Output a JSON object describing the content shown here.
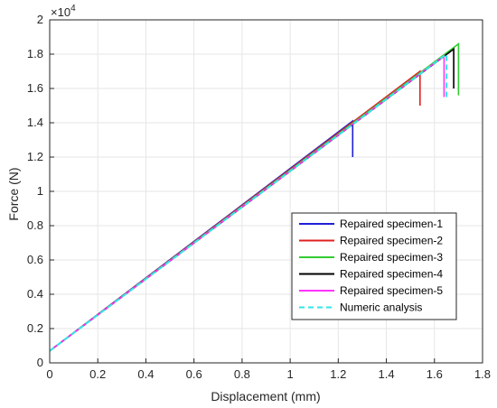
{
  "chart_data": {
    "type": "line",
    "xlabel": "Displacement (mm)",
    "ylabel": "Force (N)",
    "y_exponent_base": "×10",
    "y_exponent_power": "4",
    "xlim": [
      0,
      1.8
    ],
    "ylim": [
      0,
      2
    ],
    "xticks": [
      "0",
      "0.2",
      "0.4",
      "0.6",
      "0.8",
      "1",
      "1.2",
      "1.4",
      "1.6",
      "1.8"
    ],
    "yticks": [
      "0",
      "0.2",
      "0.4",
      "0.6",
      "0.8",
      "1",
      "1.2",
      "1.4",
      "1.6",
      "1.8",
      "2"
    ],
    "grid": true,
    "legend_position": "bottom-right",
    "series": [
      {
        "name": "Repaired specimen-1",
        "color": "#1f1fd6",
        "style": "solid",
        "x": [
          0,
          1.26,
          1.26
        ],
        "y": [
          0.07,
          1.41,
          1.2
        ]
      },
      {
        "name": "Repaired specimen-2",
        "color": "#e02020",
        "style": "solid",
        "x": [
          0,
          1.54,
          1.54
        ],
        "y": [
          0.07,
          1.7,
          1.5
        ]
      },
      {
        "name": "Repaired specimen-3",
        "color": "#33cc33",
        "style": "solid",
        "x": [
          0,
          1.7,
          1.7
        ],
        "y": [
          0.07,
          1.86,
          1.56
        ]
      },
      {
        "name": "Repaired specimen-4",
        "color": "#000000",
        "style": "solid",
        "x": [
          0,
          1.68,
          1.68
        ],
        "y": [
          0.07,
          1.83,
          1.6
        ]
      },
      {
        "name": "Repaired specimen-5",
        "color": "#ff33ff",
        "style": "solid",
        "x": [
          0,
          1.64,
          1.64
        ],
        "y": [
          0.07,
          1.79,
          1.55
        ]
      },
      {
        "name": "Numeric analysis",
        "color": "#33e6e6",
        "style": "dashed",
        "x": [
          0,
          1.65,
          1.65
        ],
        "y": [
          0.07,
          1.8,
          1.53
        ]
      }
    ]
  }
}
